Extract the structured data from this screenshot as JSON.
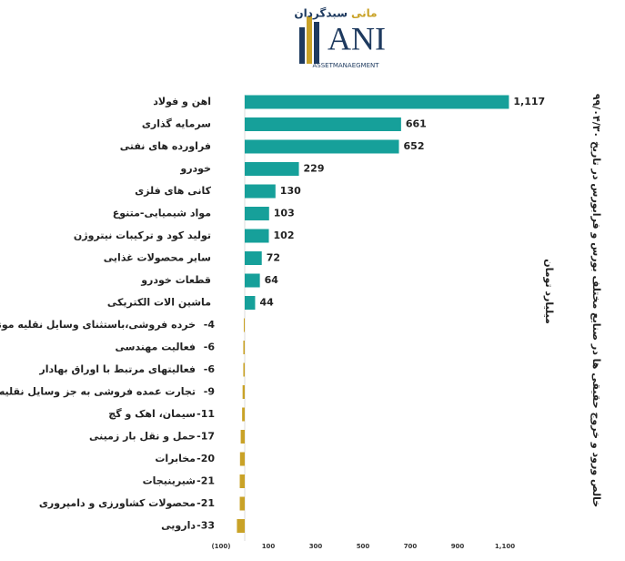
{
  "logo": {
    "name": "سبدگردان",
    "name_accent": "مانی",
    "mark": "ANI",
    "subtitle": "ASSETMANAEGMENT"
  },
  "chart_data": {
    "type": "hbar",
    "title": "خالص ورود و خروج حقیقی ها در صنایع مختلف بورس و فرابورس در تاریخ ۹۹/۰۴/۳۰",
    "y_axis_label": "میلیارد تومان",
    "categories": [
      "اهن و فولاد",
      "سرمایه گذاری",
      "فراورده های نفتی",
      "خودرو",
      "کانی های فلزی",
      "مواد شیمیایی-متنوع",
      "تولید کود و ترکیبات نیتروژن",
      "سایر محصولات غذایی",
      "قطعات خودرو",
      "ماشین الات الکتریکی",
      "خرده فروشی،باستثنای وسایل نقلیه موتوری",
      "فعالیت مهندسی",
      "فعالیتهای مرتبط با اوراق بهادار",
      "تجارت عمده فروشی به جز وسایل نقلیه موتوری",
      "سیمان، اهک و گچ",
      "حمل و نقل بار زمینی",
      "مخابرات",
      "شیرینیجات",
      "محصولات کشاورزی و دامپروری",
      "دارویی"
    ],
    "values": [
      1117,
      661,
      652,
      229,
      130,
      103,
      102,
      72,
      64,
      44,
      -4,
      -6,
      -6,
      -9,
      -11,
      -17,
      -20,
      -21,
      -21,
      -33
    ],
    "value_labels": [
      "1,117",
      "661",
      "652",
      "229",
      "130",
      "103",
      "102",
      "72",
      "64",
      "44",
      "-4",
      "-6",
      "-6",
      "-9",
      "-11",
      "-17",
      "-20",
      "-21",
      "-21",
      "-33"
    ],
    "positive_color": "#16a09a",
    "negative_color": "#c9a227",
    "xlim": [
      -100,
      1200
    ],
    "xticks": [
      {
        "value": -100,
        "label": "(100)"
      },
      100,
      300,
      500,
      700,
      900,
      {
        "value": 1100,
        "label": "1,100"
      }
    ],
    "negative_tick_color": "#c00000"
  }
}
